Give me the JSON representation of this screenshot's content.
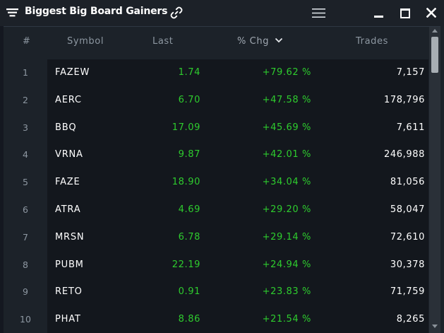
{
  "window": {
    "title": "Biggest Big Board Gainers"
  },
  "icons": {
    "title_menu": "filter-list-icon",
    "link": "link-chain-icon",
    "menu": "hamburger-menu-icon",
    "minimize": "minimize-icon",
    "maximize": "maximize-icon",
    "close": "close-icon",
    "sort": "chevron-down-icon"
  },
  "colors": {
    "positive": "#2ecc2e",
    "text_primary": "#ffffff",
    "text_muted": "#8d97a1",
    "background": "#1c2229",
    "row_background": "#13171d"
  },
  "table": {
    "columns": {
      "num": "#",
      "symbol": "Symbol",
      "last": "Last",
      "chg": "% Chg",
      "trades": "Trades"
    },
    "sorted_by": "% Chg",
    "sort_direction": "descending",
    "rows": [
      {
        "num": "1",
        "symbol": "FAZEW",
        "last": "1.74",
        "chg": "+79.62 %",
        "trades": "7,157"
      },
      {
        "num": "2",
        "symbol": "AERC",
        "last": "6.70",
        "chg": "+47.58 %",
        "trades": "178,796"
      },
      {
        "num": "3",
        "symbol": "BBQ",
        "last": "17.09",
        "chg": "+45.69 %",
        "trades": "7,611"
      },
      {
        "num": "4",
        "symbol": "VRNA",
        "last": "9.87",
        "chg": "+42.01 %",
        "trades": "246,988"
      },
      {
        "num": "5",
        "symbol": "FAZE",
        "last": "18.90",
        "chg": "+34.04 %",
        "trades": "81,056"
      },
      {
        "num": "6",
        "symbol": "ATRA",
        "last": "4.69",
        "chg": "+29.20 %",
        "trades": "58,047"
      },
      {
        "num": "7",
        "symbol": "MRSN",
        "last": "6.78",
        "chg": "+29.14 %",
        "trades": "72,610"
      },
      {
        "num": "8",
        "symbol": "PUBM",
        "last": "22.19",
        "chg": "+24.94 %",
        "trades": "30,378"
      },
      {
        "num": "9",
        "symbol": "RETO",
        "last": "0.91",
        "chg": "+23.83 %",
        "trades": "71,759"
      },
      {
        "num": "10",
        "symbol": "PHAT",
        "last": "8.86",
        "chg": "+21.54 %",
        "trades": "8,265"
      }
    ]
  }
}
